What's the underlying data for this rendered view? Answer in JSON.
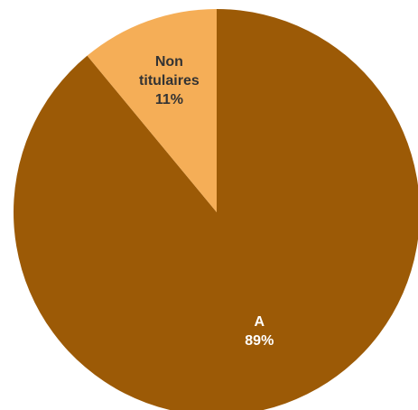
{
  "chart_data": {
    "type": "pie",
    "title": "",
    "start": "12 o'clock",
    "direction": "clockwise",
    "slices": [
      {
        "name": "A",
        "value": 89,
        "label_lines": [
          "A"
        ],
        "percent_label": "89%",
        "color": "#9C5A06",
        "label_color": "#ffffff"
      },
      {
        "name": "Non titulaires",
        "value": 11,
        "label_lines": [
          "Non",
          "titulaires"
        ],
        "percent_label": "11%",
        "color": "#F5AE57",
        "label_color": "#333333"
      }
    ],
    "legend": "none"
  }
}
